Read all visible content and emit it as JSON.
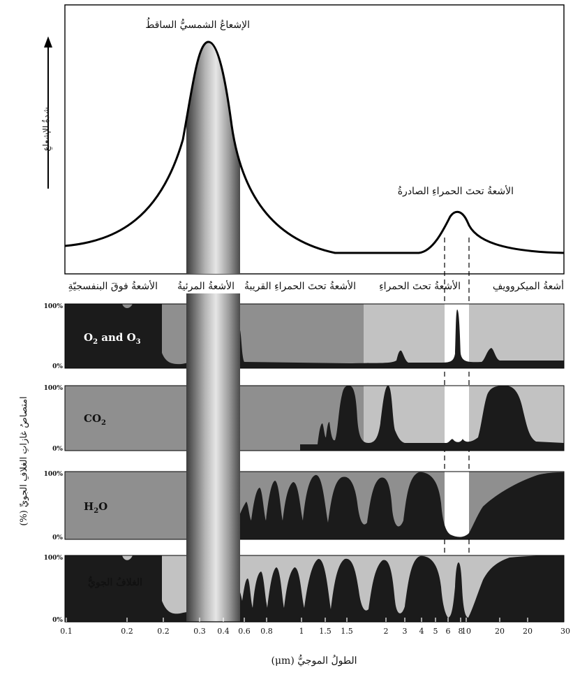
{
  "colors": {
    "absorption": "#1b1b1b",
    "panel_dark": "#8f8f8f",
    "panel_light": "#c2c2c2",
    "window": "#ffffff",
    "curve": "#000000"
  },
  "top_panel": {
    "incoming_label": "الإشعاعُ الشمسيُّ الساقطُ",
    "outgoing_label": "الأشعةُ تحتَ الحمراءِ الصادرةُ",
    "y_axis_label": "شدةُ الإشعاعِ"
  },
  "band_labels": {
    "ultraviolet": "الأشعةُ فوقَ البنفسجيّةِ",
    "visible": "الأشعةُ المرئيةُ",
    "near_infrared": "الأشعةُ تحتَ الحمراءِ القريبةُ",
    "infrared": "الأشعةُ تحتَ الحمراءِ",
    "microwave": "أشعةُ الميكروويفِ"
  },
  "panels": [
    {
      "name": "o2-o3",
      "label_html": "O<tspan font-size='10' dy='4'>2</tspan><tspan dy='-4'> and O</tspan><tspan font-size='10' dy='4'>3</tspan>",
      "label_color": "#ffffff",
      "top_label": "100%",
      "bottom_label": "0%"
    },
    {
      "name": "co2",
      "label_html": "CO<tspan font-size='10' dy='4'>2</tspan>",
      "label_color": "#111111",
      "top_label": "100%",
      "bottom_label": "0%"
    },
    {
      "name": "h2o",
      "label_html": "H<tspan font-size='10' dy='4'>2</tspan><tspan dy='-4'>O</tspan>",
      "label_color": "#111111",
      "top_label": "100%",
      "bottom_label": "0%"
    },
    {
      "name": "atmosphere",
      "label_html": "الغلافُ الجويُّ",
      "label_color": "#ffffff",
      "top_label": "100%",
      "bottom_label": "0%"
    }
  ],
  "absorption_axis_label": "امتصاصُ غازاتِ الغلافِ الجويِّ (%)",
  "x_axis": {
    "ticks": [
      "0.1",
      "0.2",
      "0.2",
      "0.3",
      "0.4",
      "0.6",
      "0.8",
      "1",
      "1.5",
      "1.5",
      "2",
      "3",
      "4",
      "5",
      "6",
      "8",
      "10",
      "20",
      "20",
      "30"
    ],
    "label": "الطولُ الموجيُّ (μm)"
  }
}
